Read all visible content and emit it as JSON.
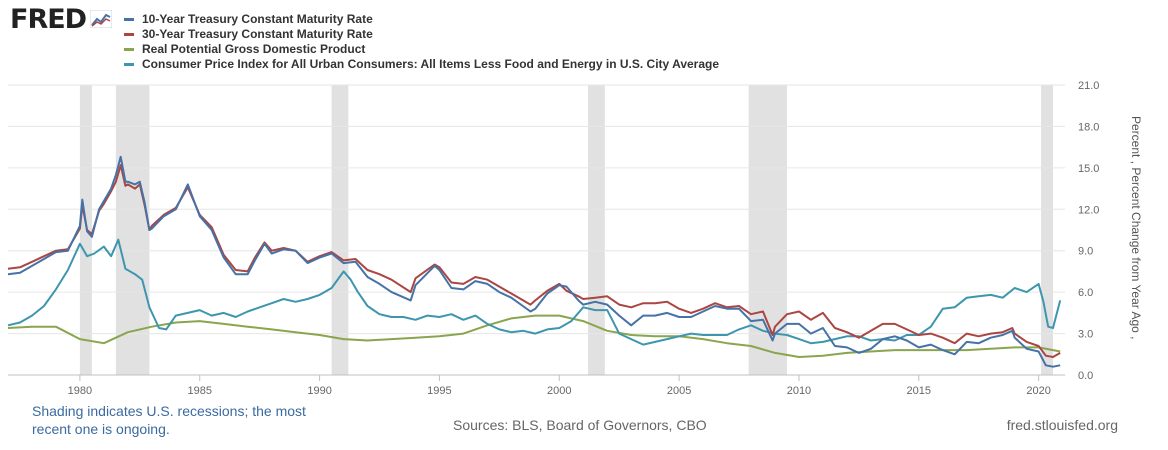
{
  "logo": {
    "text": "FRED"
  },
  "legend": {
    "items": [
      {
        "label": "10-Year Treasury Constant Maturity Rate",
        "color": "#4572a7"
      },
      {
        "label": "30-Year Treasury Constant Maturity Rate",
        "color": "#aa4643"
      },
      {
        "label": "Real Potential Gross Domestic Product",
        "color": "#89a54e"
      },
      {
        "label": "Consumer Price Index for All Urban Consumers: All Items Less Food and Energy in U.S. City Average",
        "color": "#3d96ae"
      }
    ]
  },
  "footer": {
    "note": "Shading indicates U.S. recessions; the most recent one is ongoing.",
    "sources": "Sources: BLS, Board of Governors, CBO",
    "site": "fred.stlouisfed.org"
  },
  "chart_data": {
    "type": "line",
    "ylabel": "Percent , Percent Change from Year Ago ,",
    "xlim": [
      1977.0,
      2021.1
    ],
    "ylim": [
      0,
      21
    ],
    "x_ticks": [
      "1980",
      "1985",
      "1990",
      "1995",
      "2000",
      "2005",
      "2010",
      "2015",
      "2020"
    ],
    "y_ticks": [
      "0.0",
      "3.0",
      "6.0",
      "9.0",
      "12.0",
      "15.0",
      "18.0",
      "21.0"
    ],
    "grid": "horizontal",
    "legend_position": "top-left",
    "recessions": [
      [
        1980.0,
        1980.5
      ],
      [
        1981.5,
        1982.9
      ],
      [
        1990.5,
        1991.2
      ],
      [
        2001.2,
        2001.9
      ],
      [
        2007.9,
        2009.5
      ],
      [
        2020.1,
        2020.6
      ]
    ],
    "series": [
      {
        "name": "10-Year Treasury Constant Maturity Rate",
        "color": "#4572a7",
        "x": [
          1977,
          1977.5,
          1978,
          1978.5,
          1979,
          1979.5,
          1980,
          1980.1,
          1980.3,
          1980.5,
          1980.8,
          1981,
          1981.3,
          1981.5,
          1981.7,
          1981.9,
          1982,
          1982.3,
          1982.5,
          1982.7,
          1982.9,
          1983,
          1983.5,
          1984,
          1984.5,
          1985,
          1985.5,
          1986,
          1986.5,
          1987,
          1987.3,
          1987.7,
          1988,
          1988.5,
          1989,
          1989.5,
          1990,
          1990.5,
          1991,
          1991.5,
          1992,
          1992.5,
          1993,
          1993.8,
          1994,
          1994.8,
          1995,
          1995.5,
          1996,
          1996.5,
          1997,
          1997.5,
          1998,
          1998.8,
          1999,
          1999.5,
          2000,
          2000.3,
          2000.8,
          2001,
          2001.5,
          2002,
          2002.5,
          2003,
          2003.5,
          2004,
          2004.5,
          2005,
          2005.5,
          2006,
          2006.5,
          2007,
          2007.5,
          2008,
          2008.5,
          2008.9,
          2009,
          2009.5,
          2010,
          2010.5,
          2011,
          2011.5,
          2012,
          2012.5,
          2013,
          2013.5,
          2014,
          2014.5,
          2015,
          2015.5,
          2016,
          2016.5,
          2017,
          2017.5,
          2018,
          2018.5,
          2018.9,
          2019,
          2019.5,
          2020,
          2020.3,
          2020.6,
          2020.9
        ],
        "values": [
          7.3,
          7.4,
          7.9,
          8.4,
          8.9,
          9.0,
          10.8,
          12.7,
          10.4,
          10.0,
          12.0,
          12.6,
          13.5,
          14.5,
          15.8,
          14.0,
          14.0,
          13.8,
          14.0,
          12.5,
          10.5,
          10.6,
          11.5,
          12.0,
          13.8,
          11.5,
          10.5,
          8.5,
          7.3,
          7.3,
          8.3,
          9.5,
          8.8,
          9.1,
          9.0,
          8.1,
          8.5,
          8.8,
          8.1,
          8.2,
          7.1,
          6.6,
          6.0,
          5.4,
          6.5,
          7.9,
          7.6,
          6.3,
          6.2,
          6.8,
          6.6,
          6.0,
          5.6,
          4.6,
          4.8,
          5.9,
          6.5,
          6.4,
          5.4,
          5.1,
          5.3,
          5.1,
          4.3,
          3.6,
          4.3,
          4.3,
          4.5,
          4.2,
          4.2,
          4.6,
          5.0,
          4.8,
          4.8,
          3.9,
          4.0,
          2.5,
          3.0,
          3.7,
          3.7,
          3.0,
          3.4,
          2.1,
          2.0,
          1.6,
          1.9,
          2.6,
          2.8,
          2.5,
          2.0,
          2.2,
          1.8,
          1.5,
          2.4,
          2.3,
          2.7,
          2.9,
          3.2,
          2.7,
          1.9,
          1.7,
          0.7,
          0.6,
          0.7
        ]
      },
      {
        "name": "30-Year Treasury Constant Maturity Rate",
        "color": "#aa4643",
        "x": [
          1977,
          1977.5,
          1978,
          1978.5,
          1979,
          1979.5,
          1980,
          1980.1,
          1980.3,
          1980.5,
          1980.8,
          1981,
          1981.3,
          1981.5,
          1981.7,
          1981.9,
          1982,
          1982.3,
          1982.5,
          1982.7,
          1982.9,
          1983,
          1983.5,
          1984,
          1984.5,
          1985,
          1985.5,
          1986,
          1986.5,
          1987,
          1987.3,
          1987.7,
          1988,
          1988.5,
          1989,
          1989.5,
          1990,
          1990.5,
          1991,
          1991.5,
          1992,
          1992.5,
          1993,
          1993.8,
          1994,
          1994.8,
          1995,
          1995.5,
          1996,
          1996.5,
          1997,
          1997.5,
          1998,
          1998.8,
          1999,
          1999.5,
          2000,
          2000.3,
          2000.8,
          2001,
          2001.5,
          2002,
          2002.5,
          2003,
          2003.5,
          2004,
          2004.5,
          2005,
          2005.5,
          2006,
          2006.5,
          2007,
          2007.5,
          2008,
          2008.5,
          2008.9,
          2009,
          2009.5,
          2010,
          2010.5,
          2011,
          2011.5,
          2012,
          2012.5,
          2013,
          2013.5,
          2014,
          2014.5,
          2015,
          2015.5,
          2016,
          2016.5,
          2017,
          2017.5,
          2018,
          2018.5,
          2018.9,
          2019,
          2019.5,
          2020,
          2020.3,
          2020.6,
          2020.9
        ],
        "values": [
          7.7,
          7.8,
          8.2,
          8.6,
          9.0,
          9.1,
          10.6,
          12.3,
          10.5,
          10.2,
          11.9,
          12.4,
          13.3,
          14.0,
          15.2,
          13.7,
          13.8,
          13.5,
          13.8,
          12.3,
          10.5,
          10.8,
          11.6,
          12.1,
          13.6,
          11.6,
          10.7,
          8.7,
          7.6,
          7.5,
          8.5,
          9.6,
          9.0,
          9.2,
          9.0,
          8.2,
          8.6,
          8.9,
          8.3,
          8.4,
          7.6,
          7.3,
          6.9,
          6.0,
          7.0,
          8.0,
          7.8,
          6.7,
          6.6,
          7.1,
          6.9,
          6.4,
          5.9,
          5.1,
          5.4,
          6.1,
          6.6,
          6.1,
          5.7,
          5.5,
          5.6,
          5.7,
          5.1,
          4.9,
          5.2,
          5.2,
          5.3,
          4.8,
          4.5,
          4.8,
          5.2,
          4.9,
          5.0,
          4.4,
          4.6,
          2.9,
          3.5,
          4.4,
          4.6,
          4.0,
          4.5,
          3.4,
          3.1,
          2.7,
          3.2,
          3.7,
          3.7,
          3.3,
          2.9,
          3.0,
          2.7,
          2.3,
          3.0,
          2.8,
          3.0,
          3.1,
          3.4,
          3.0,
          2.4,
          2.1,
          1.4,
          1.3,
          1.6
        ]
      },
      {
        "name": "Real Potential Gross Domestic Product",
        "color": "#89a54e",
        "x": [
          1977,
          1978,
          1979,
          1980,
          1981,
          1982,
          1983,
          1984,
          1985,
          1986,
          1987,
          1988,
          1989,
          1990,
          1991,
          1992,
          1993,
          1994,
          1995,
          1996,
          1997,
          1998,
          1999,
          2000,
          2001,
          2002,
          2003,
          2004,
          2005,
          2006,
          2007,
          2008,
          2009,
          2010,
          2011,
          2012,
          2013,
          2014,
          2015,
          2016,
          2017,
          2018,
          2019,
          2020,
          2020.9
        ],
        "values": [
          3.4,
          3.5,
          3.5,
          2.6,
          2.3,
          3.1,
          3.5,
          3.8,
          3.9,
          3.7,
          3.5,
          3.3,
          3.1,
          2.9,
          2.6,
          2.5,
          2.6,
          2.7,
          2.8,
          3.0,
          3.6,
          4.1,
          4.3,
          4.3,
          3.9,
          3.2,
          2.9,
          2.8,
          2.8,
          2.6,
          2.3,
          2.1,
          1.6,
          1.3,
          1.4,
          1.6,
          1.7,
          1.8,
          1.8,
          1.8,
          1.8,
          1.9,
          2.0,
          2.0,
          1.7
        ]
      },
      {
        "name": "Consumer Price Index for All Urban Consumers: All Items Less Food and Energy in U.S. City Average",
        "color": "#3d96ae",
        "x": [
          1977,
          1977.5,
          1978,
          1978.5,
          1979,
          1979.5,
          1980,
          1980.3,
          1980.6,
          1981,
          1981.3,
          1981.6,
          1981.9,
          1982.3,
          1982.6,
          1982.9,
          1983.3,
          1983.6,
          1984,
          1984.5,
          1985,
          1985.5,
          1986,
          1986.5,
          1987,
          1987.5,
          1988,
          1988.5,
          1989,
          1989.5,
          1990,
          1990.5,
          1991,
          1991.3,
          1991.6,
          1992,
          1992.5,
          1993,
          1993.5,
          1994,
          1994.5,
          1995,
          1995.5,
          1996,
          1996.5,
          1997,
          1997.5,
          1998,
          1998.5,
          1999,
          1999.5,
          2000,
          2000.5,
          2001,
          2001.5,
          2002,
          2002.5,
          2003,
          2003.5,
          2004,
          2004.5,
          2005,
          2005.5,
          2006,
          2006.5,
          2007,
          2007.5,
          2008,
          2008.5,
          2009,
          2009.5,
          2010,
          2010.5,
          2011,
          2011.5,
          2012,
          2012.5,
          2013,
          2013.5,
          2014,
          2014.5,
          2015,
          2015.5,
          2016,
          2016.5,
          2017,
          2017.5,
          2018,
          2018.5,
          2019,
          2019.5,
          2020,
          2020.2,
          2020.4,
          2020.6,
          2020.9
        ],
        "values": [
          3.6,
          3.8,
          4.3,
          5.0,
          6.2,
          7.6,
          9.5,
          8.6,
          8.8,
          9.3,
          8.6,
          9.8,
          7.7,
          7.3,
          6.9,
          4.9,
          3.4,
          3.3,
          4.3,
          4.5,
          4.7,
          4.3,
          4.5,
          4.2,
          4.6,
          4.9,
          5.2,
          5.5,
          5.3,
          5.5,
          5.8,
          6.3,
          7.5,
          6.9,
          6.0,
          5.0,
          4.4,
          4.2,
          4.2,
          4.0,
          4.3,
          4.2,
          4.4,
          4.0,
          4.3,
          3.7,
          3.3,
          3.1,
          3.2,
          3.0,
          3.3,
          3.4,
          3.9,
          4.9,
          4.7,
          4.7,
          3.0,
          2.6,
          2.2,
          2.4,
          2.6,
          2.8,
          3.0,
          2.9,
          2.9,
          2.9,
          3.3,
          3.6,
          3.2,
          3.0,
          2.9,
          2.6,
          2.3,
          2.4,
          2.6,
          2.8,
          2.8,
          2.5,
          2.6,
          2.5,
          2.9,
          2.9,
          3.5,
          4.8,
          4.9,
          5.6,
          5.7,
          5.8,
          5.6,
          6.3,
          6.0,
          6.6,
          5.3,
          3.5,
          3.4,
          5.4
        ]
      }
    ]
  }
}
